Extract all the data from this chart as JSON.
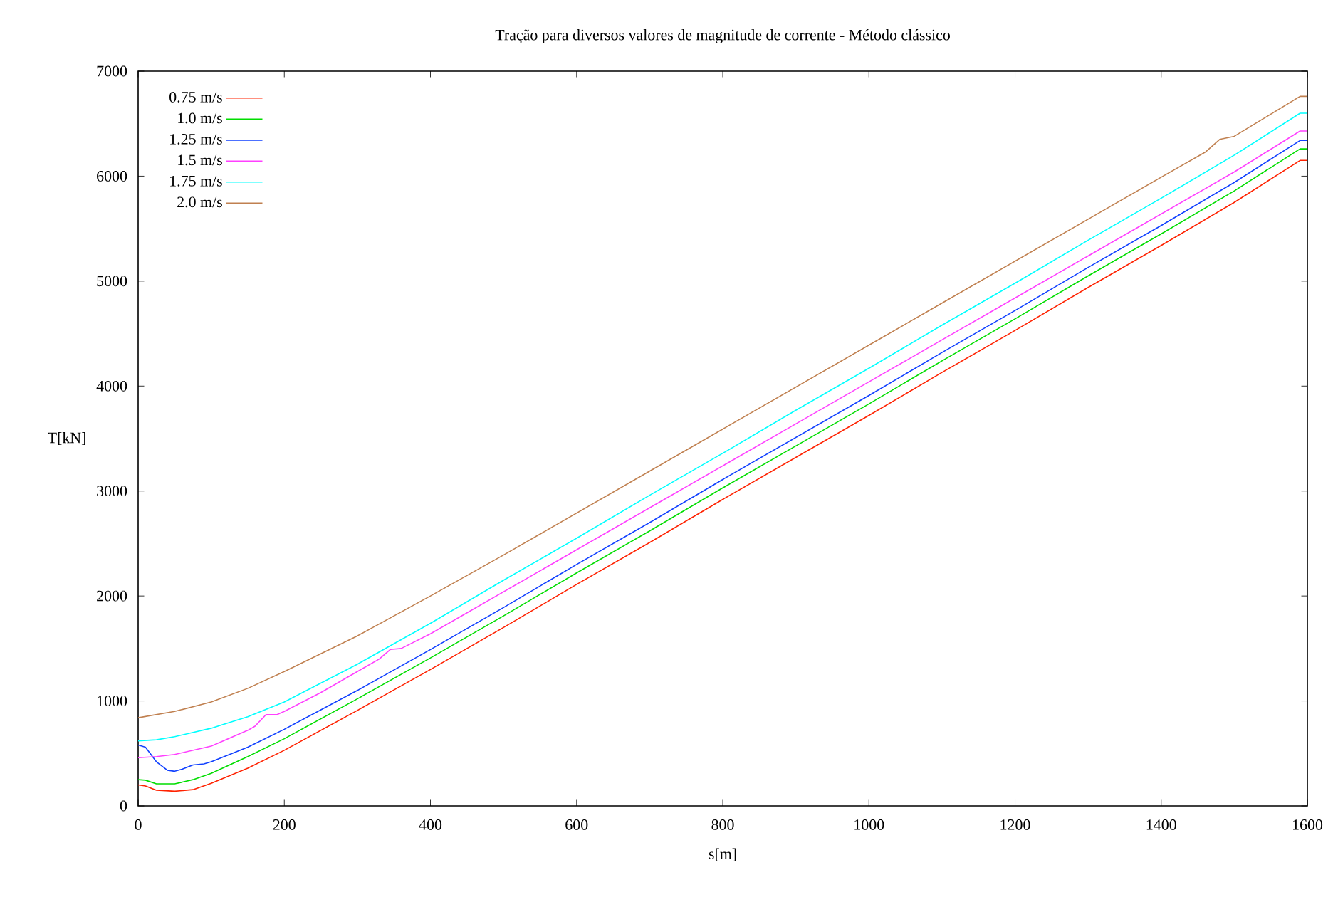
{
  "chart_data": {
    "type": "line",
    "title": "Tração para diversos valores de magnitude de corrente - Método clássico",
    "xlabel": "s[m]",
    "ylabel": "T[kN]",
    "xlim": [
      0,
      1600
    ],
    "ylim": [
      0,
      7000
    ],
    "xticks": [
      0,
      200,
      400,
      600,
      800,
      1000,
      1200,
      1400,
      1600
    ],
    "yticks": [
      0,
      1000,
      2000,
      3000,
      4000,
      5000,
      6000,
      7000
    ],
    "grid": false,
    "legend": "top left",
    "marker": "none",
    "line_style": "solid",
    "series": [
      {
        "name": "0.75 m/s",
        "color": "#ff2200",
        "x": [
          0,
          10,
          25,
          50,
          75,
          100,
          150,
          200,
          300,
          400,
          500,
          600,
          700,
          800,
          900,
          1000,
          1100,
          1200,
          1300,
          1400,
          1500,
          1590,
          1600
        ],
        "values": [
          200,
          190,
          150,
          140,
          155,
          215,
          360,
          530,
          910,
          1300,
          1700,
          2110,
          2510,
          2920,
          3320,
          3720,
          4130,
          4530,
          4940,
          5340,
          5750,
          6150,
          6150
        ]
      },
      {
        "name": "1.0 m/s",
        "color": "#00dd00",
        "x": [
          0,
          10,
          25,
          50,
          75,
          100,
          150,
          200,
          300,
          400,
          500,
          600,
          700,
          800,
          900,
          1000,
          1100,
          1200,
          1300,
          1400,
          1500,
          1590,
          1600
        ],
        "values": [
          250,
          245,
          210,
          210,
          250,
          310,
          470,
          640,
          1020,
          1410,
          1810,
          2220,
          2620,
          3030,
          3430,
          3830,
          4240,
          4640,
          5050,
          5450,
          5860,
          6260,
          6260
        ]
      },
      {
        "name": "1.25 m/s",
        "color": "#1040ff",
        "x": [
          0,
          10,
          25,
          40,
          50,
          60,
          75,
          90,
          100,
          150,
          200,
          300,
          400,
          500,
          600,
          700,
          800,
          900,
          1000,
          1100,
          1200,
          1300,
          1400,
          1500,
          1590,
          1600
        ],
        "values": [
          580,
          560,
          420,
          340,
          330,
          350,
          390,
          400,
          420,
          560,
          730,
          1100,
          1490,
          1890,
          2300,
          2700,
          3110,
          3510,
          3910,
          4320,
          4720,
          5130,
          5530,
          5940,
          6340,
          6340
        ]
      },
      {
        "name": "1.5 m/s",
        "color": "#ff40ff",
        "x": [
          0,
          25,
          50,
          100,
          150,
          160,
          175,
          190,
          200,
          250,
          300,
          330,
          345,
          360,
          400,
          500,
          600,
          700,
          800,
          900,
          1000,
          1100,
          1200,
          1300,
          1400,
          1500,
          1590,
          1600
        ],
        "values": [
          460,
          470,
          490,
          570,
          720,
          760,
          870,
          870,
          900,
          1080,
          1280,
          1400,
          1490,
          1500,
          1640,
          2040,
          2440,
          2840,
          3240,
          3640,
          4040,
          4440,
          4840,
          5240,
          5640,
          6040,
          6430,
          6430
        ]
      },
      {
        "name": "1.75 m/s",
        "color": "#00ffff",
        "x": [
          0,
          25,
          50,
          100,
          150,
          200,
          300,
          400,
          500,
          600,
          700,
          800,
          900,
          1000,
          1100,
          1200,
          1300,
          1400,
          1500,
          1590,
          1600
        ],
        "values": [
          620,
          630,
          660,
          740,
          850,
          990,
          1350,
          1740,
          2150,
          2550,
          2960,
          3360,
          3770,
          4170,
          4580,
          4980,
          5390,
          5790,
          6200,
          6600,
          6600
        ]
      },
      {
        "name": "2.0 m/s",
        "color": "#c08050",
        "x": [
          0,
          50,
          100,
          150,
          200,
          300,
          400,
          500,
          600,
          700,
          800,
          900,
          1000,
          1100,
          1200,
          1300,
          1400,
          1461,
          1480,
          1500,
          1590,
          1600
        ],
        "values": [
          840,
          900,
          990,
          1120,
          1280,
          1620,
          2000,
          2390,
          2790,
          3190,
          3590,
          3990,
          4390,
          4790,
          5190,
          5590,
          5990,
          6232,
          6350,
          6380,
          6760,
          6760
        ]
      }
    ]
  }
}
